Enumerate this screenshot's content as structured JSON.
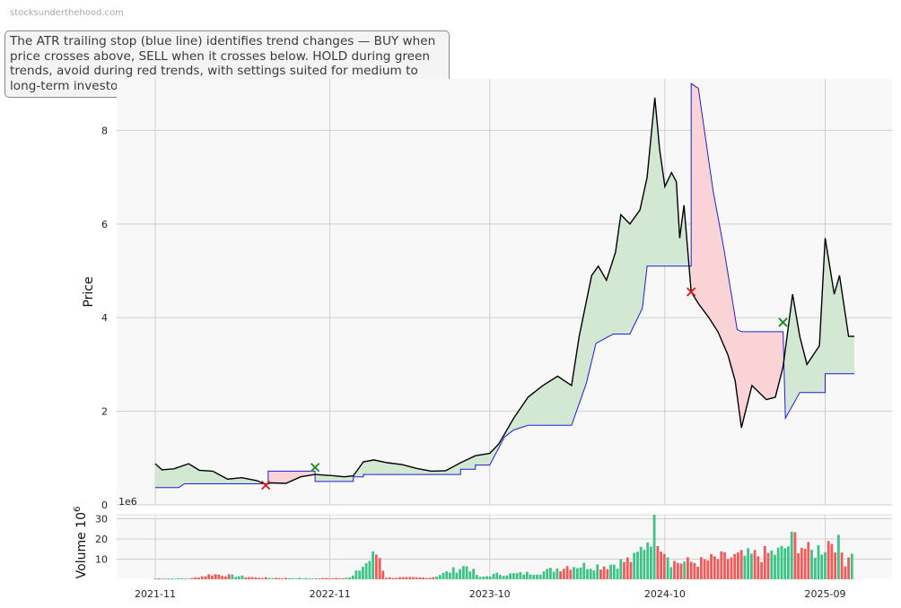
{
  "watermark": "stocksunderthehood.com",
  "info": "The ATR trailing stop (blue line) identifies trend changes — BUY when price crosses above, SELL when it crosses below. HOLD during green trends, avoid during red trends, with settings suited for medium to long-term investors.",
  "colors": {
    "price": "#000000",
    "stop": "#1f1fd6",
    "buy_fill": "#d3e8d3",
    "sell_fill": "#fad3d6",
    "buy_marker": "#1a8a1a",
    "sell_marker": "#d61a1a",
    "vol_up": "#3cc486",
    "vol_down": "#f25a5a",
    "panel_bg": "#f8f8f8",
    "grid": "#cfcfcf"
  },
  "chart_data": [
    {
      "type": "line",
      "ylabel": "Price",
      "ylim": [
        0,
        9.1
      ],
      "yticks": [
        0,
        2,
        4,
        6,
        8
      ],
      "x_ticks": [
        "2021-11",
        "2022-11",
        "2023-10",
        "2024-10",
        "2025-09"
      ],
      "grid": true,
      "series": [
        {
          "role": "price",
          "points": [
            [
              "2021-11-01",
              0.88
            ],
            [
              "2021-11-15",
              0.75
            ],
            [
              "2021-12-10",
              0.77
            ],
            [
              "2022-01-10",
              0.88
            ],
            [
              "2022-02-01",
              0.74
            ],
            [
              "2022-03-01",
              0.72
            ],
            [
              "2022-04-01",
              0.55
            ],
            [
              "2022-05-01",
              0.58
            ],
            [
              "2022-06-01",
              0.52
            ],
            [
              "2022-06-20",
              0.44
            ],
            [
              "2022-07-01",
              0.47
            ],
            [
              "2022-08-01",
              0.46
            ],
            [
              "2022-09-01",
              0.6
            ],
            [
              "2022-10-01",
              0.65
            ],
            [
              "2022-11-10",
              0.62
            ],
            [
              "2022-12-01",
              0.6
            ],
            [
              "2022-12-20",
              0.62
            ],
            [
              "2023-01-10",
              0.92
            ],
            [
              "2023-02-01",
              0.96
            ],
            [
              "2023-03-01",
              0.9
            ],
            [
              "2023-04-01",
              0.86
            ],
            [
              "2023-05-01",
              0.78
            ],
            [
              "2023-06-01",
              0.72
            ],
            [
              "2023-07-01",
              0.73
            ],
            [
              "2023-08-01",
              0.9
            ],
            [
              "2023-09-01",
              1.05
            ],
            [
              "2023-10-01",
              1.1
            ],
            [
              "2023-10-20",
              1.3
            ],
            [
              "2023-11-20",
              1.85
            ],
            [
              "2023-12-20",
              2.3
            ],
            [
              "2024-01-20",
              2.55
            ],
            [
              "2024-02-20",
              2.75
            ],
            [
              "2024-03-20",
              2.55
            ],
            [
              "2024-04-05",
              3.6
            ],
            [
              "2024-05-01",
              4.9
            ],
            [
              "2024-05-15",
              5.1
            ],
            [
              "2024-06-01",
              4.8
            ],
            [
              "2024-06-20",
              5.4
            ],
            [
              "2024-07-01",
              6.2
            ],
            [
              "2024-07-20",
              6.0
            ],
            [
              "2024-08-10",
              6.3
            ],
            [
              "2024-08-25",
              7.0
            ],
            [
              "2024-09-10",
              8.7
            ],
            [
              "2024-09-20",
              7.6
            ],
            [
              "2024-10-01",
              6.8
            ],
            [
              "2024-10-15",
              7.1
            ],
            [
              "2024-10-25",
              6.9
            ],
            [
              "2024-11-01",
              5.7
            ],
            [
              "2024-11-10",
              6.4
            ],
            [
              "2024-11-25",
              4.55
            ],
            [
              "2024-12-10",
              4.3
            ],
            [
              "2025-01-01",
              4.0
            ],
            [
              "2025-01-20",
              3.7
            ],
            [
              "2025-02-10",
              3.2
            ],
            [
              "2025-02-25",
              2.65
            ],
            [
              "2025-03-10",
              1.65
            ],
            [
              "2025-04-01",
              2.55
            ],
            [
              "2025-05-01",
              2.25
            ],
            [
              "2025-05-20",
              2.3
            ],
            [
              "2025-06-05",
              2.95
            ],
            [
              "2025-06-25",
              4.5
            ],
            [
              "2025-07-10",
              3.6
            ],
            [
              "2025-07-25",
              3.0
            ],
            [
              "2025-08-20",
              3.4
            ],
            [
              "2025-09-01",
              5.7
            ],
            [
              "2025-09-20",
              4.5
            ],
            [
              "2025-10-01",
              4.9
            ],
            [
              "2025-10-20",
              3.6
            ],
            [
              "2025-11-01",
              3.6
            ]
          ]
        },
        {
          "role": "stop",
          "points": [
            [
              "2021-11-01",
              0.37
            ],
            [
              "2021-12-20",
              0.37
            ],
            [
              "2022-01-01",
              0.45
            ],
            [
              "2022-06-25",
              0.45
            ],
            [
              "2022-06-25",
              0.72
            ],
            [
              "2022-10-01",
              0.72
            ],
            [
              "2022-10-01",
              0.5
            ],
            [
              "2022-12-20",
              0.5
            ],
            [
              "2022-12-20",
              0.6
            ],
            [
              "2023-01-10",
              0.6
            ],
            [
              "2023-01-10",
              0.65
            ],
            [
              "2023-08-01",
              0.65
            ],
            [
              "2023-08-01",
              0.76
            ],
            [
              "2023-09-01",
              0.76
            ],
            [
              "2023-09-01",
              0.85
            ],
            [
              "2023-10-01",
              0.85
            ],
            [
              "2023-11-01",
              1.45
            ],
            [
              "2023-11-20",
              1.6
            ],
            [
              "2023-12-20",
              1.7
            ],
            [
              "2024-03-20",
              1.7
            ],
            [
              "2024-04-20",
              2.6
            ],
            [
              "2024-05-10",
              3.45
            ],
            [
              "2024-06-15",
              3.65
            ],
            [
              "2024-07-20",
              3.65
            ],
            [
              "2024-08-15",
              4.2
            ],
            [
              "2024-08-25",
              5.1
            ],
            [
              "2024-11-25",
              5.1
            ],
            [
              "2024-11-25",
              9.0
            ],
            [
              "2024-12-10",
              8.9
            ],
            [
              "2025-01-10",
              6.7
            ],
            [
              "2025-02-01",
              5.5
            ],
            [
              "2025-03-01",
              3.75
            ],
            [
              "2025-03-10",
              3.7
            ],
            [
              "2025-06-05",
              3.7
            ],
            [
              "2025-06-10",
              1.85
            ],
            [
              "2025-07-10",
              2.4
            ],
            [
              "2025-09-01",
              2.4
            ],
            [
              "2025-09-01",
              2.8
            ],
            [
              "2025-11-01",
              2.8
            ]
          ]
        }
      ],
      "signals": [
        {
          "type": "sell",
          "date": "2022-06-20",
          "price": 0.42
        },
        {
          "type": "buy",
          "date": "2022-10-01",
          "price": 0.8
        },
        {
          "type": "sell",
          "date": "2024-11-25",
          "price": 4.55
        },
        {
          "type": "buy",
          "date": "2025-06-05",
          "price": 3.9
        }
      ],
      "trends": [
        {
          "state": "buy",
          "from": "2021-11-01",
          "to": "2022-06-20"
        },
        {
          "state": "sell",
          "from": "2022-06-20",
          "to": "2022-10-01"
        },
        {
          "state": "buy",
          "from": "2022-10-01",
          "to": "2024-11-25"
        },
        {
          "state": "sell",
          "from": "2024-11-25",
          "to": "2025-06-05"
        },
        {
          "state": "buy",
          "from": "2025-06-05",
          "to": "2025-11-01"
        }
      ]
    },
    {
      "type": "bar",
      "ylabel": "Volume",
      "yunit": "10",
      "yunit_exp": "6",
      "offset_label": "1e6",
      "ylim": [
        0,
        32
      ],
      "yticks": [
        10,
        20,
        30
      ],
      "grid": true,
      "levels": [
        [
          "2021-11-01",
          0.5
        ],
        [
          "2022-01-15",
          0.5
        ],
        [
          "2022-03-01",
          3
        ],
        [
          "2022-06-01",
          1
        ],
        [
          "2022-10-01",
          0.5
        ],
        [
          "2022-12-15",
          1
        ],
        [
          "2023-02-10",
          16
        ],
        [
          "2023-02-25",
          1
        ],
        [
          "2023-06-01",
          1
        ],
        [
          "2023-08-15",
          8
        ],
        [
          "2023-09-10",
          1
        ],
        [
          "2023-10-15",
          3
        ],
        [
          "2023-11-15",
          3
        ],
        [
          "2024-01-15",
          4
        ],
        [
          "2024-03-15",
          8
        ],
        [
          "2024-06-01",
          8
        ],
        [
          "2024-08-01",
          12
        ],
        [
          "2024-09-10",
          31
        ],
        [
          "2024-10-15",
          10
        ],
        [
          "2024-12-15",
          10
        ],
        [
          "2025-01-15",
          12
        ],
        [
          "2025-03-01",
          13
        ],
        [
          "2025-04-15",
          14
        ],
        [
          "2025-06-01",
          16
        ],
        [
          "2025-07-01",
          24
        ],
        [
          "2025-08-01",
          15
        ],
        [
          "2025-09-01",
          20
        ],
        [
          "2025-09-20",
          25
        ],
        [
          "2025-10-15",
          10
        ],
        [
          "2025-11-01",
          23
        ]
      ]
    }
  ]
}
